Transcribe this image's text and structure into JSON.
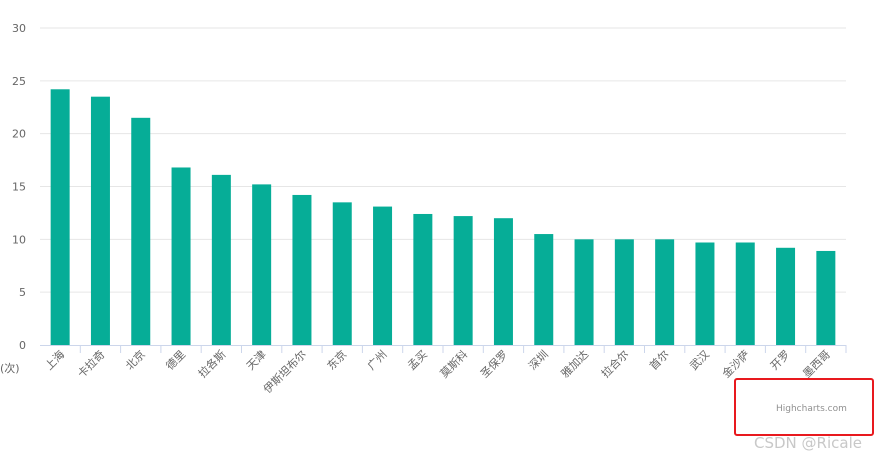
{
  "chart_data": {
    "type": "bar",
    "categories": [
      "上海",
      "卡拉奇",
      "北京",
      "德里",
      "拉各斯",
      "天津",
      "伊斯坦布尔",
      "东京",
      "广州",
      "孟买",
      "莫斯科",
      "圣保罗",
      "深圳",
      "雅加达",
      "拉合尔",
      "首尔",
      "武汉",
      "金沙萨",
      "开罗",
      "墨西哥"
    ],
    "values": [
      24.2,
      23.5,
      21.5,
      16.8,
      16.1,
      15.2,
      14.2,
      13.5,
      13.1,
      12.4,
      12.2,
      12.0,
      10.5,
      10.0,
      10.0,
      10.0,
      9.7,
      9.7,
      9.2,
      8.9
    ],
    "ylim": [
      0,
      30
    ],
    "yticks": [
      "0",
      "5",
      "10",
      "15",
      "20",
      "25",
      "30"
    ],
    "ylabel": "(次)",
    "grid": true,
    "color": "#06ad97",
    "gridColor": "#e6e6e6",
    "axisColor": "#ccd6eb"
  },
  "credits": "Highcharts.com",
  "watermark": "CSDN @Ricale"
}
